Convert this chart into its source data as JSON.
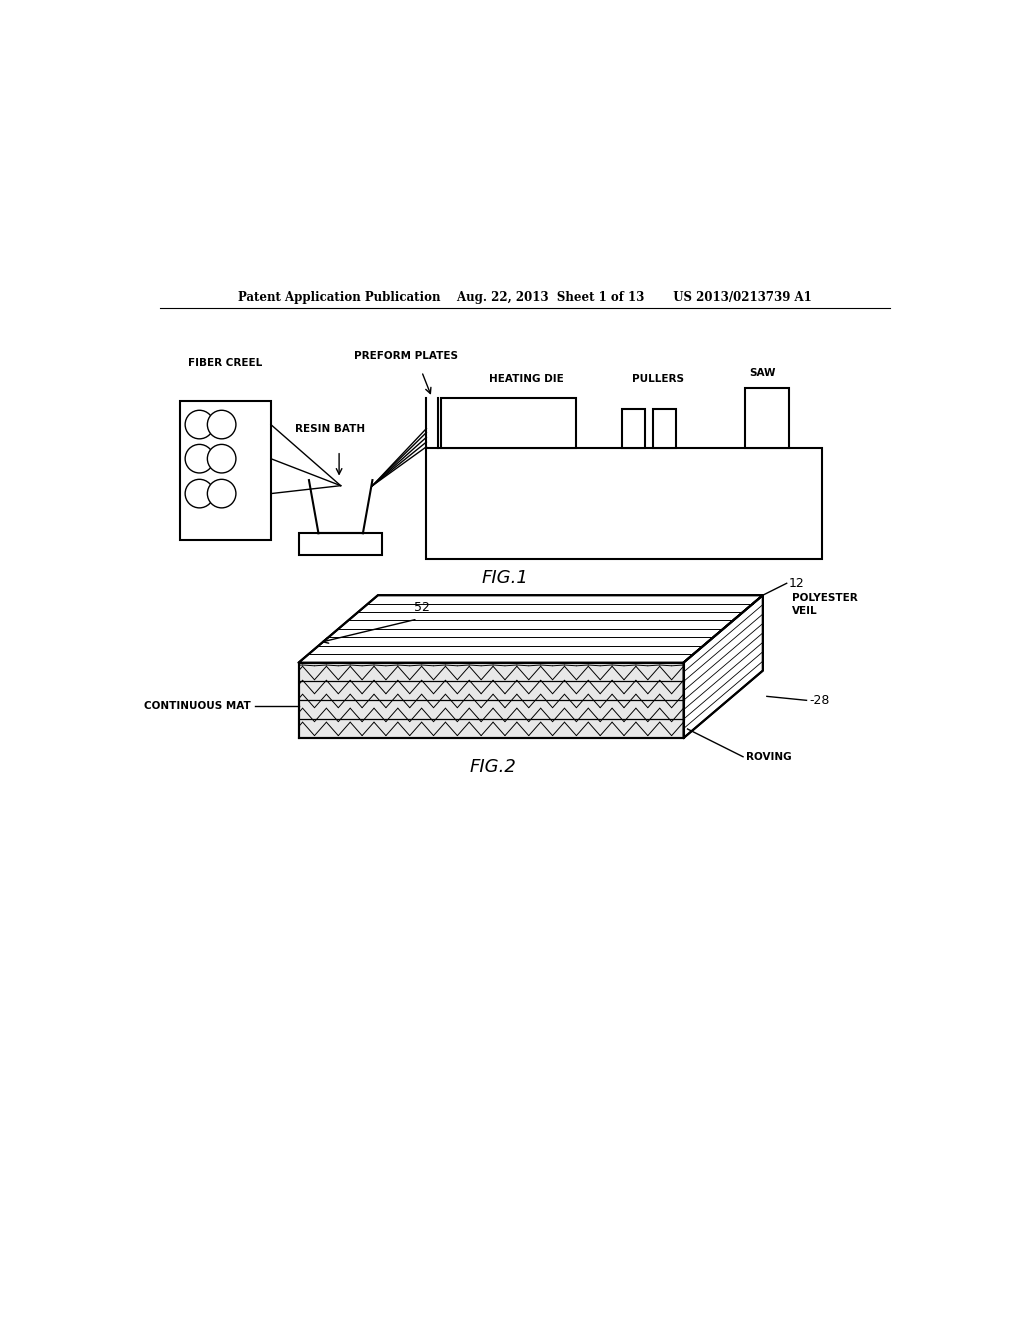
{
  "bg_color": "#ffffff",
  "text_color": "#000000",
  "line_color": "#000000",
  "header_text": "Patent Application Publication    Aug. 22, 2013  Sheet 1 of 13       US 2013/0213739 A1",
  "fig1_caption": "FIG.1",
  "fig2_caption": "FIG.2"
}
